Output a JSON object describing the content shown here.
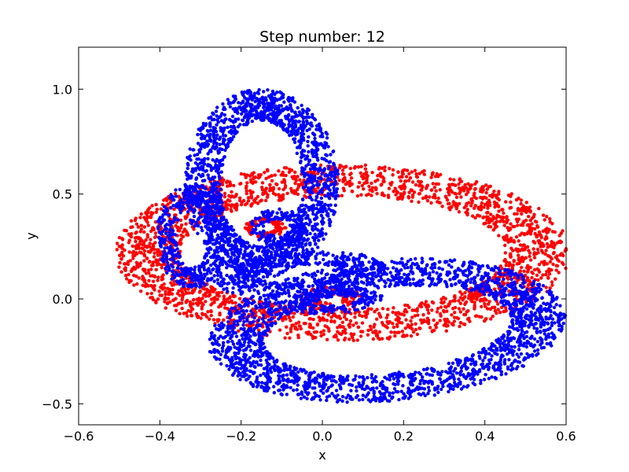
{
  "chart_data": {
    "type": "scatter",
    "title": "Step number: 12",
    "xlabel": "x",
    "ylabel": "y",
    "xlim": [
      -0.6,
      0.6
    ],
    "ylim": [
      -0.6,
      1.2
    ],
    "xticks": [
      -0.6,
      -0.4,
      -0.2,
      0.0,
      0.2,
      0.4,
      0.6
    ],
    "xtick_labels": [
      "−0.6",
      "−0.4",
      "−0.2",
      "0.0",
      "0.2",
      "0.4",
      "0.6"
    ],
    "yticks": [
      -0.5,
      0.0,
      0.5,
      1.0
    ],
    "ytick_labels": [
      "−0.5",
      "0.0",
      "0.5",
      "1.0"
    ],
    "grid": false,
    "legend": "none",
    "series": [
      {
        "color": "#ff0000",
        "description_of_shape": "ring",
        "shapes": [
          {
            "kind": "ring",
            "cx": 0.05,
            "cy": 0.22,
            "rx_outer": 0.56,
            "ry_outer": 0.42,
            "rx_inner": 0.4,
            "ry_inner": 0.27,
            "rotation_deg": 0,
            "count": 2400
          },
          {
            "kind": "ring",
            "cx": -0.14,
            "cy": 0.34,
            "rx_outer": 0.05,
            "ry_outer": 0.05,
            "rx_inner": 0.025,
            "ry_inner": 0.025,
            "rotation_deg": 0,
            "count": 120
          },
          {
            "kind": "ring",
            "cx": 0.02,
            "cy": 0.0,
            "rx_outer": 0.08,
            "ry_outer": 0.06,
            "rx_inner": 0.03,
            "ry_inner": 0.02,
            "rotation_deg": 0,
            "count": 120
          }
        ]
      },
      {
        "color": "#0000ff",
        "shapes": [
          {
            "kind": "ring",
            "cx": -0.15,
            "cy": 0.55,
            "rx_outer": 0.19,
            "ry_outer": 0.45,
            "rx_inner": 0.1,
            "ry_inner": 0.3,
            "rotation_deg": 0,
            "count": 1700
          },
          {
            "kind": "ring",
            "cx": -0.32,
            "cy": 0.3,
            "rx_outer": 0.09,
            "ry_outer": 0.25,
            "rx_inner": 0.04,
            "ry_inner": 0.15,
            "rotation_deg": 0,
            "count": 500
          },
          {
            "kind": "ring",
            "cx": 0.16,
            "cy": -0.15,
            "rx_outer": 0.45,
            "ry_outer": 0.33,
            "rx_inner": 0.31,
            "ry_inner": 0.2,
            "rotation_deg": 18,
            "count": 2200
          },
          {
            "kind": "ring",
            "cx": -0.11,
            "cy": 0.34,
            "rx_outer": 0.07,
            "ry_outer": 0.09,
            "rx_inner": 0.03,
            "ry_inner": 0.04,
            "rotation_deg": 0,
            "count": 180
          },
          {
            "kind": "ring",
            "cx": 0.03,
            "cy": -0.01,
            "rx_outer": 0.12,
            "ry_outer": 0.06,
            "rx_inner": 0.06,
            "ry_inner": 0.02,
            "rotation_deg": 10,
            "count": 220
          },
          {
            "kind": "ring",
            "cx": -0.06,
            "cy": 0.12,
            "rx_outer": 0.22,
            "ry_outer": 0.1,
            "rx_inner": 0.1,
            "ry_inner": 0.04,
            "rotation_deg": 10,
            "count": 450
          }
        ]
      }
    ]
  }
}
